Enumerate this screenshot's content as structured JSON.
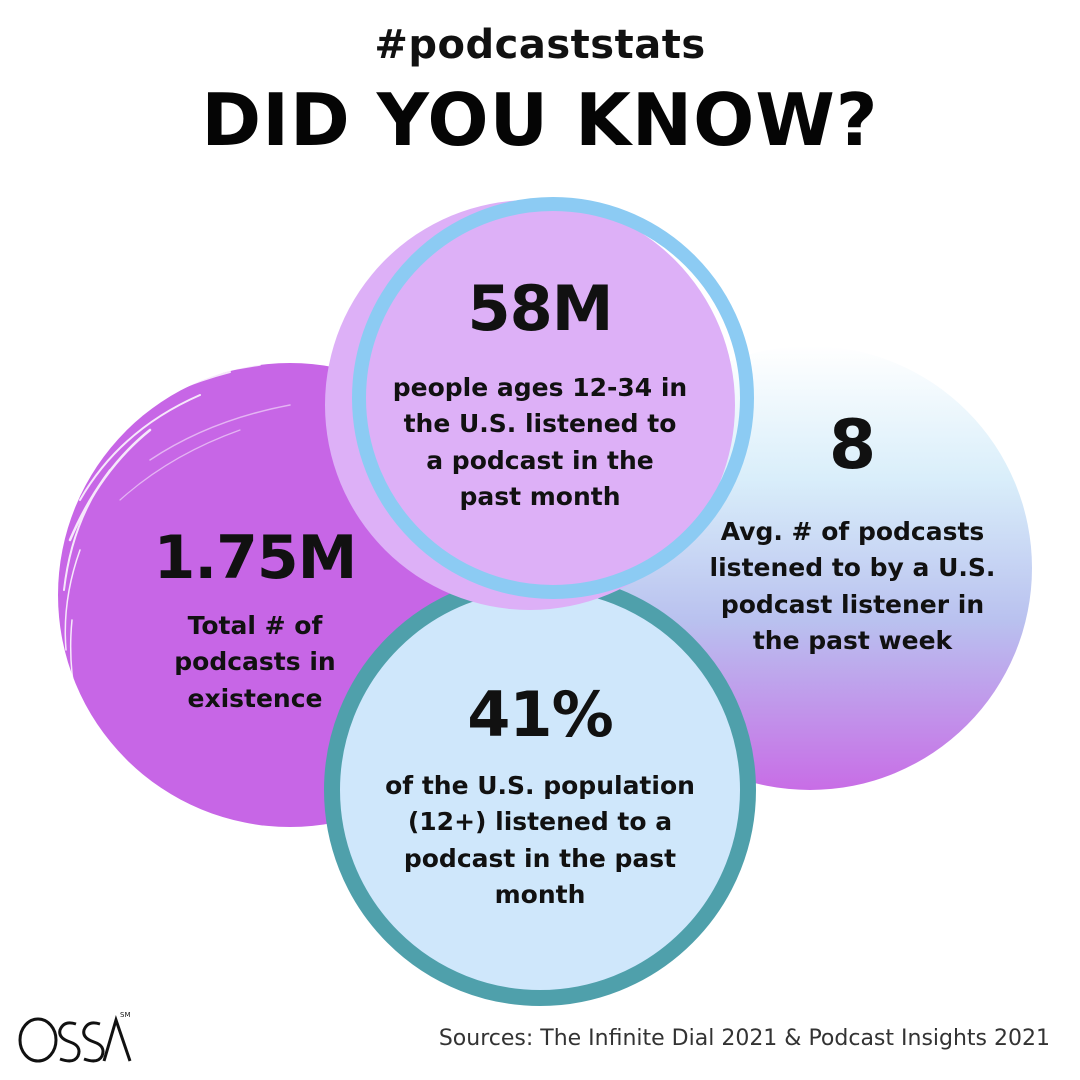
{
  "header": {
    "hashtag": "#podcaststats",
    "headline": "DID YOU KNOW?"
  },
  "stats": {
    "left": {
      "value": "1.75M",
      "description": "Total # of podcasts in existence"
    },
    "top": {
      "value": "58M",
      "description": "people ages 12-34 in the U.S. listened to a podcast in the past month"
    },
    "right": {
      "value": "8",
      "description": "Avg. # of podcasts listened to by a U.S. podcast listener in the past week"
    },
    "bottom": {
      "value": "41%",
      "description": "of the U.S. population (12+) listened to a podcast in the past month"
    }
  },
  "brand": {
    "logo_text": "OSSA",
    "logo_mark": "SM"
  },
  "footer": {
    "sources": "Sources: The Infinite Dial 2021 & Podcast Insights 2021"
  },
  "colors": {
    "left_circle": "#c766e6",
    "top_circle_fill": "#ddb0f7",
    "top_circle_ring": "#8ccbf3",
    "bottom_circle_fill": "#cfe7fb",
    "bottom_circle_ring": "#4fa0ab",
    "right_circle_top": "#ddf1fb",
    "right_circle_bottom": "#c873e6"
  }
}
